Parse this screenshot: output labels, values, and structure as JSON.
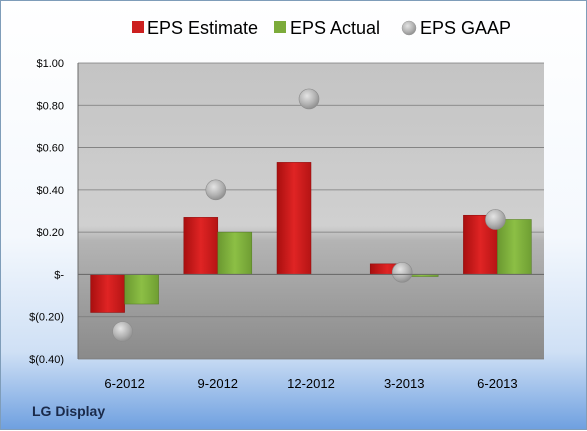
{
  "company": "LG Display",
  "colors": {
    "estimate": "#cc1f1f",
    "actual": "#7cab3a",
    "gaap": "#b8b8b8"
  },
  "chart_data": {
    "type": "bar",
    "categories": [
      "6-2012",
      "9-2012",
      "12-2012",
      "3-2013",
      "6-2013"
    ],
    "series": [
      {
        "name": "EPS Estimate",
        "kind": "bar",
        "values": [
          -0.18,
          0.27,
          0.53,
          0.05,
          0.28
        ]
      },
      {
        "name": "EPS Actual",
        "kind": "bar",
        "values": [
          -0.14,
          0.2,
          null,
          -0.01,
          0.26
        ]
      },
      {
        "name": "EPS GAAP",
        "kind": "marker",
        "values": [
          -0.27,
          0.4,
          0.83,
          0.01,
          0.26
        ]
      }
    ],
    "ylim": [
      -0.4,
      1.0
    ],
    "ytick_values": [
      1.0,
      0.8,
      0.6,
      0.4,
      0.2,
      0,
      -0.2,
      -0.4
    ],
    "ytick_labels": [
      "$1.00",
      "$0.80",
      "$0.60",
      "$0.40",
      "$0.20",
      "$-",
      "$(0.20)",
      "$(0.40)"
    ],
    "legend": [
      "EPS Estimate",
      "EPS Actual",
      "EPS GAAP"
    ],
    "legend_position": "top",
    "grid": true
  }
}
